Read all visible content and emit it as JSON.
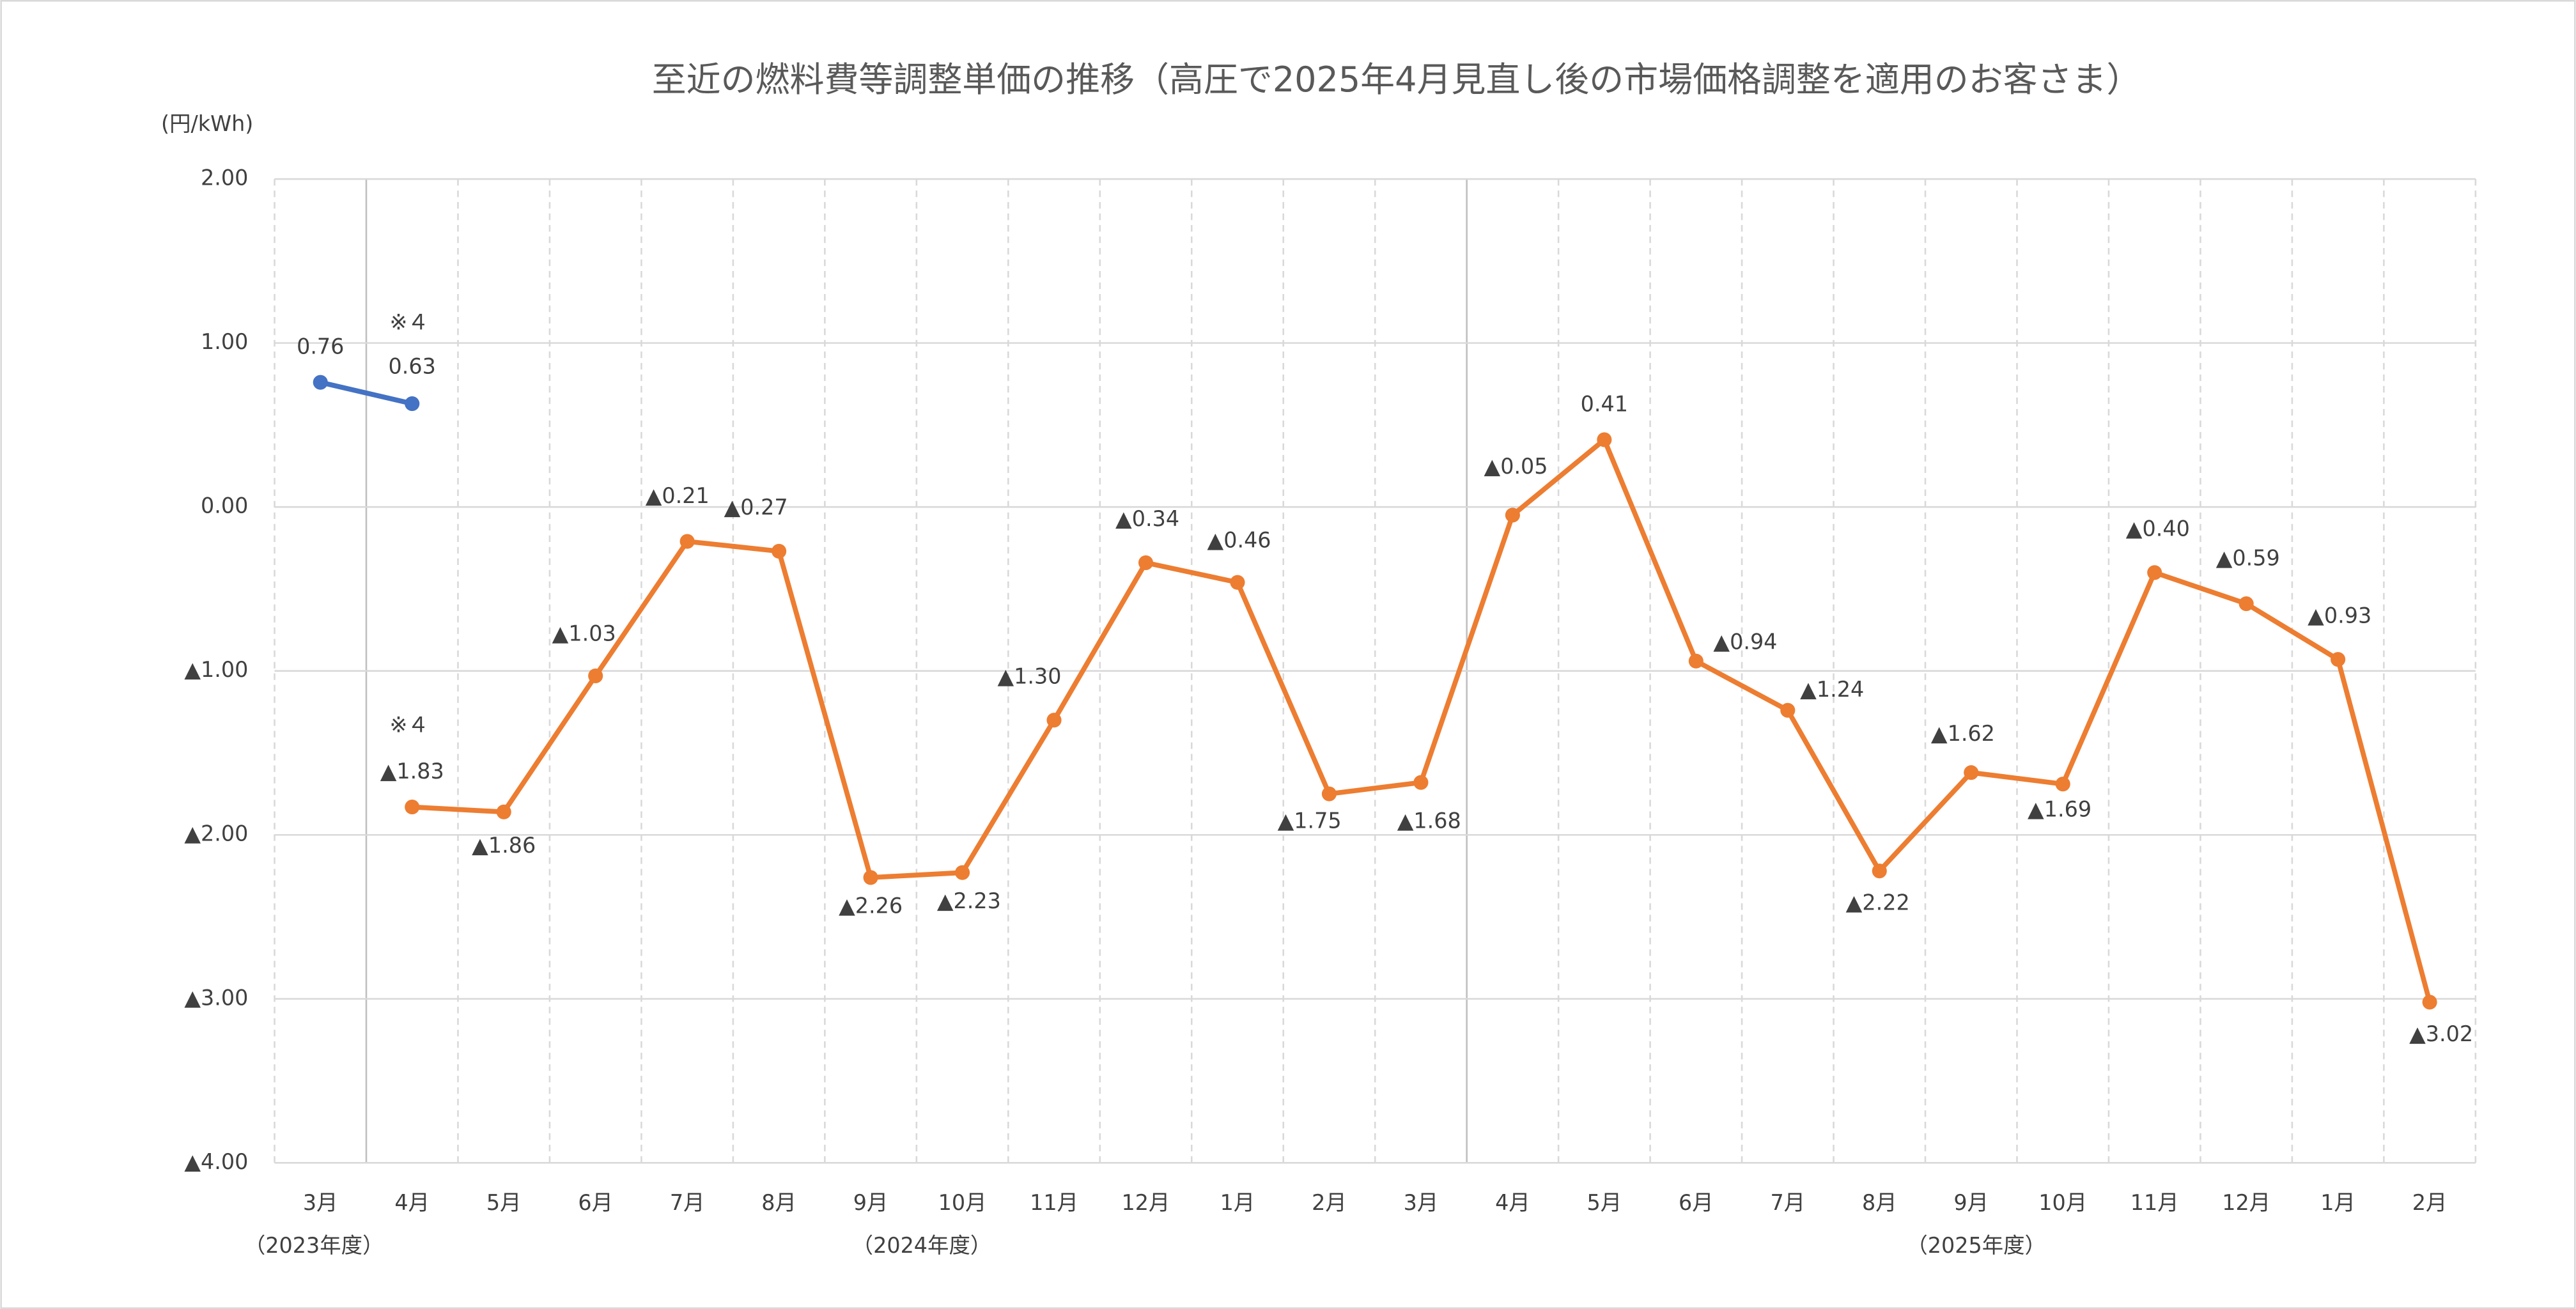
{
  "chart_data": {
    "type": "line",
    "title": "至近の燃料費等調整単価の推移（高圧で2025年4月見直し後の市場価格調整を適用のお客さま）",
    "y_label": "(円/kWh)",
    "categories": [
      "3月",
      "4月",
      "5月",
      "6月",
      "7月",
      "8月",
      "9月",
      "10月",
      "11月",
      "12月",
      "1月",
      "2月",
      "3月",
      "4月",
      "5月",
      "6月",
      "7月",
      "8月",
      "9月",
      "10月",
      "11月",
      "12月",
      "1月",
      "2月"
    ],
    "period_labels": [
      "（2023年度）",
      "（2024年度）",
      "（2025年度）"
    ],
    "annotations": [
      "※４",
      "※４"
    ],
    "ylim": [
      -4,
      2
    ],
    "yticks": [
      {
        "value": 2,
        "label": "2.00"
      },
      {
        "value": 1,
        "label": "1.00"
      },
      {
        "value": 0,
        "label": "0.00"
      },
      {
        "value": -1,
        "label": "▲1.00"
      },
      {
        "value": -2,
        "label": "▲2.00"
      },
      {
        "value": -3,
        "label": "▲3.00"
      },
      {
        "value": -4,
        "label": "▲4.00"
      }
    ],
    "grid": true,
    "series": [
      {
        "color": "#4472c4",
        "values": [
          0.76,
          0.63,
          null,
          null,
          null,
          null,
          null,
          null,
          null,
          null,
          null,
          null,
          null,
          null,
          null,
          null,
          null,
          null,
          null,
          null,
          null,
          null,
          null,
          null
        ]
      },
      {
        "color": "#ed7d31",
        "values": [
          null,
          -1.83,
          -1.86,
          -1.03,
          -0.21,
          -0.27,
          -2.26,
          -2.23,
          -1.3,
          -0.34,
          -0.46,
          -1.75,
          -1.68,
          -0.05,
          0.41,
          -0.94,
          -1.24,
          -2.22,
          -1.62,
          -1.69,
          -0.4,
          -0.59,
          -0.93,
          -3.02
        ],
        "value_labels": [
          null,
          "▲1.83",
          "▲1.86",
          "▲1.03",
          "▲0.21",
          "▲0.27",
          "▲2.26",
          "▲2.23",
          "▲1.30",
          "▲0.34",
          "▲0.46",
          "▲1.75",
          "▲1.68",
          "▲0.05",
          "0.41",
          "▲0.94",
          "▲1.24",
          "▲2.22",
          "▲1.62",
          "▲1.69",
          "▲0.40",
          "▲0.59",
          "▲0.93",
          "▲3.02"
        ]
      }
    ]
  }
}
